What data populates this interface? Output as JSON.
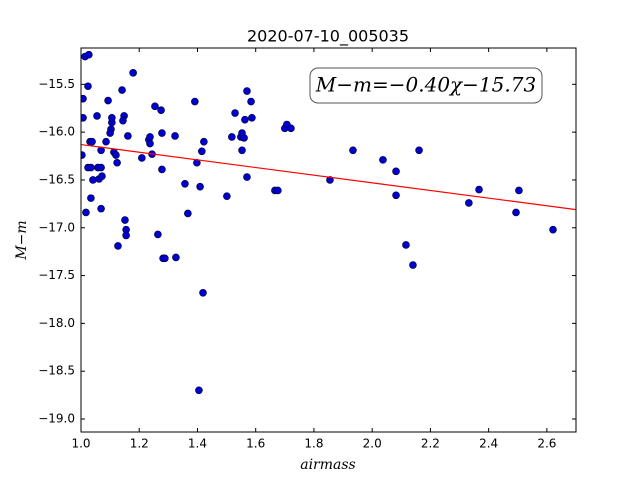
{
  "chart_data": {
    "type": "scatter",
    "title": "2020-07-10_005035",
    "x_label": "airmass",
    "y_label": "M−m",
    "x": [
      1.014,
      1.027,
      1.024,
      1.007,
      1.007,
      1.003,
      1.031,
      1.017,
      1.024,
      1.034,
      1.058,
      1.041,
      1.034,
      1.055,
      1.038,
      1.062,
      1.069,
      1.069,
      1.072,
      1.069,
      1.086,
      1.093,
      1.103,
      1.1,
      1.106,
      1.106,
      1.113,
      1.12,
      1.124,
      1.127,
      1.148,
      1.141,
      1.144,
      1.151,
      1.155,
      1.155,
      1.161,
      1.179,
      1.209,
      1.233,
      1.237,
      1.237,
      1.244,
      1.254,
      1.264,
      1.275,
      1.278,
      1.282,
      1.278,
      1.288,
      1.326,
      1.323,
      1.367,
      1.357,
      1.391,
      1.398,
      1.409,
      1.419,
      1.405,
      1.415,
      1.422,
      1.501,
      1.529,
      1.518,
      1.549,
      1.553,
      1.553,
      1.56,
      1.57,
      1.57,
      1.563,
      1.584,
      1.587,
      1.666,
      1.676,
      1.7,
      1.707,
      1.721,
      1.855,
      1.934,
      2.037,
      2.082,
      2.082,
      2.116,
      2.14,
      2.161,
      2.332,
      2.367,
      2.494,
      2.504,
      2.621
    ],
    "values": [
      -15.21,
      -15.19,
      -15.52,
      -15.65,
      -15.85,
      -16.24,
      -16.1,
      -16.84,
      -16.37,
      -16.37,
      -16.37,
      -16.5,
      -16.69,
      -15.83,
      -16.1,
      -16.49,
      -16.37,
      -16.19,
      -16.46,
      -16.8,
      -16.1,
      -15.67,
      -15.97,
      -16.01,
      -15.9,
      -15.85,
      -16.21,
      -16.24,
      -16.32,
      -17.19,
      -15.83,
      -15.56,
      -15.88,
      -16.92,
      -17.02,
      -17.08,
      -16.04,
      -15.38,
      -16.27,
      -16.08,
      -16.12,
      -16.05,
      -16.23,
      -15.73,
      -17.07,
      -15.77,
      -16.39,
      -17.32,
      -16.01,
      -17.32,
      -17.31,
      -16.04,
      -16.85,
      -16.54,
      -15.68,
      -16.32,
      -16.57,
      -17.68,
      -18.7,
      -16.2,
      -16.1,
      -16.67,
      -15.8,
      -16.05,
      -16.05,
      -16.19,
      -16.01,
      -16.06,
      -15.57,
      -16.47,
      -15.87,
      -15.68,
      -15.85,
      -16.61,
      -16.61,
      -15.96,
      -15.92,
      -15.96,
      -16.5,
      -16.19,
      -16.29,
      -16.41,
      -16.66,
      -17.18,
      -17.39,
      -16.19,
      -16.74,
      -16.6,
      -16.84,
      -16.61,
      -17.02
    ],
    "color": "#0000cc",
    "fit": {
      "label": "M−m=−0.40χ−15.73",
      "slope": -0.4,
      "intercept": -15.73,
      "color": "#ff0000"
    },
    "xlim": [
      1.0,
      2.7
    ],
    "ylim": [
      -19.136,
      -15.12
    ],
    "xticks": [
      {
        "value": 1.0,
        "label": "1.0"
      },
      1.2,
      1.4,
      1.6,
      1.8,
      {
        "value": 2.0,
        "label": "2.0"
      },
      2.2,
      2.4,
      2.6
    ],
    "yticks": [
      {
        "value": -15.5,
        "label": "−15.5"
      },
      {
        "value": -16.0,
        "label": "−16.0"
      },
      {
        "value": -16.5,
        "label": "−16.5"
      },
      {
        "value": -17.0,
        "label": "−17.0"
      },
      {
        "value": -17.5,
        "label": "−17.5"
      },
      {
        "value": -18.0,
        "label": "−18.0"
      },
      {
        "value": -18.5,
        "label": "−18.5"
      },
      {
        "value": -19.0,
        "label": "−19.0"
      }
    ],
    "grid": false
  }
}
